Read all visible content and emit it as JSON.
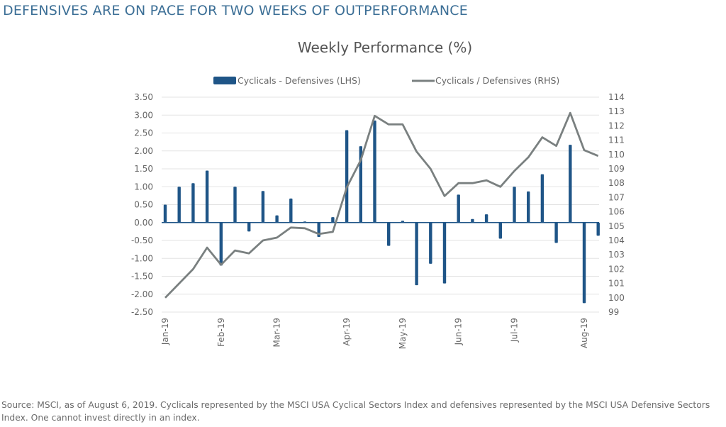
{
  "headline": "DEFENSIVES ARE ON PACE FOR TWO WEEKS OF OUTPERFORMANCE",
  "source_note": "Source: MSCI, as of August 6, 2019. Cyclicals represented by the MSCI USA Cyclical Sectors Index and defensives represented by the MSCI USA Defensive Sectors Index. One cannot invest directly in an index.",
  "colors": {
    "headline": "#3c6f96",
    "bar": "#1f5587",
    "line": "#7a8080",
    "grid": "#e3e3e3"
  },
  "chart_data": {
    "type": "bar+line",
    "title": "Weekly Performance (%)",
    "legend_position": "top",
    "grid": true,
    "x_tick_labels": [
      "Jan-19",
      "Feb-19",
      "Mar-19",
      "Apr-19",
      "May-19",
      "Jun-19",
      "Jul-19",
      "Aug-19"
    ],
    "x_tick_week_index": [
      0,
      4,
      8,
      13,
      17,
      21,
      25,
      30
    ],
    "left_axis": {
      "ylim": [
        -2.5,
        3.5
      ],
      "ticks": [
        "3.50",
        "3.00",
        "2.50",
        "2.00",
        "1.50",
        "1.00",
        "0.50",
        "0.00",
        "-0.50",
        "-1.00",
        "-1.50",
        "-2.00",
        "-2.50"
      ]
    },
    "right_axis": {
      "ylim": [
        99,
        114
      ],
      "ticks": [
        "114",
        "113",
        "112",
        "111",
        "110",
        "109",
        "108",
        "107",
        "106",
        "105",
        "104",
        "103",
        "102",
        "101",
        "100",
        "99"
      ]
    },
    "series": [
      {
        "name": "Cyclicals - Defensives (LHS)",
        "type": "bar",
        "axis": "left",
        "values": [
          0.5,
          1.0,
          1.1,
          1.45,
          -1.2,
          1.0,
          -0.25,
          0.88,
          0.2,
          0.67,
          0.03,
          -0.4,
          0.15,
          2.58,
          2.13,
          2.85,
          -0.65,
          0.05,
          -1.75,
          -1.15,
          -1.7,
          0.78,
          0.1,
          0.23,
          -0.45,
          1.0,
          0.87,
          1.35,
          -0.57,
          2.17,
          -2.25,
          -0.37
        ]
      },
      {
        "name": "Cyclicals / Defensives (RHS)",
        "type": "line",
        "axis": "right",
        "values": [
          100.0,
          101.0,
          102.0,
          103.5,
          102.3,
          103.3,
          103.1,
          104.0,
          104.2,
          104.9,
          104.85,
          104.45,
          104.6,
          107.7,
          109.6,
          112.7,
          112.1,
          112.1,
          110.2,
          109.0,
          107.1,
          108.0,
          108.0,
          108.2,
          107.75,
          108.85,
          109.8,
          111.2,
          110.6,
          112.9,
          110.3,
          109.9
        ]
      }
    ]
  }
}
